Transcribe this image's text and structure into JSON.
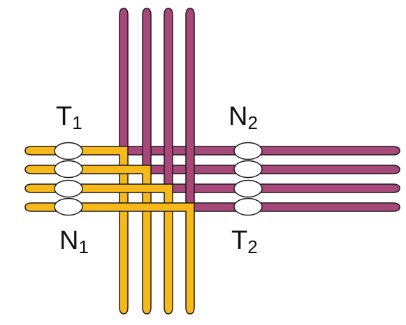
{
  "labels": {
    "t1": {
      "letter": "T",
      "index": "1"
    },
    "n2": {
      "letter": "N",
      "index": "2"
    },
    "n1": {
      "letter": "N",
      "index": "1"
    },
    "t2": {
      "letter": "T",
      "index": "2"
    }
  },
  "colors": {
    "chromosome_a": "#F7B81A",
    "chromosome_b": "#A8487A",
    "outline": "#1a1a1a",
    "centromere": "#ffffff"
  }
}
